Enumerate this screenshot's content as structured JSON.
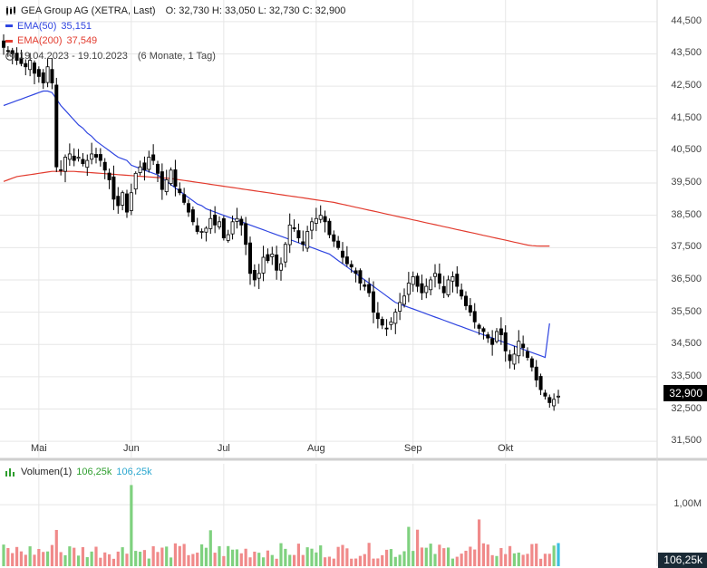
{
  "legend": {
    "instrument": "GEA Group AG (XETRA, Last)",
    "ohlc": "O: 32,730  H: 33,050  L: 32,730  C: 32,900",
    "ema50_label": "EMA(50)",
    "ema50_value": "35,151",
    "ema200_label": "EMA(200)",
    "ema200_value": "37,549",
    "period": "19.04.2023 - 19.10.2023",
    "interval": "(6 Monate, 1 Tag)"
  },
  "volume_legend": {
    "label": "Volumen(1)",
    "value1": "106,25k",
    "value2": "106,25k"
  },
  "last_price": "32,900",
  "last_volume": "106,25k",
  "colors": {
    "ema50": "#2f45e0",
    "ema200": "#e23b2e",
    "candle": "#000000",
    "volume_up": "#7fd17f",
    "volume_down": "#f08a8a",
    "volume_highlight": "#3cbfe0",
    "grid": "#e6e6e6"
  },
  "chart_data": {
    "type": "candlestick",
    "price_ylim": [
      31000,
      45000
    ],
    "y_ticks": [
      {
        "v": 44500,
        "label": "44,500"
      },
      {
        "v": 43500,
        "label": "43,500"
      },
      {
        "v": 42500,
        "label": "42,500"
      },
      {
        "v": 41500,
        "label": "41,500"
      },
      {
        "v": 40500,
        "label": "40,500"
      },
      {
        "v": 39500,
        "label": "39,500"
      },
      {
        "v": 38500,
        "label": "38,500"
      },
      {
        "v": 37500,
        "label": "37,500"
      },
      {
        "v": 36500,
        "label": "36,500"
      },
      {
        "v": 35500,
        "label": "35,500"
      },
      {
        "v": 34500,
        "label": "34,500"
      },
      {
        "v": 33500,
        "label": "33,500"
      },
      {
        "v": 32500,
        "label": "32,500"
      },
      {
        "v": 31500,
        "label": "31,500"
      }
    ],
    "x_ticks": [
      {
        "i": 8,
        "label": "Mai"
      },
      {
        "i": 29,
        "label": "Jun"
      },
      {
        "i": 50,
        "label": "Jul"
      },
      {
        "i": 71,
        "label": "Aug"
      },
      {
        "i": 93,
        "label": "Sep"
      },
      {
        "i": 114,
        "label": "Okt"
      }
    ],
    "volume_tick": {
      "v": 1000,
      "label": "1,00M"
    },
    "volume_ylim": [
      0,
      1400
    ],
    "closes": [
      43.7,
      43.6,
      43.5,
      43.3,
      43.2,
      43.1,
      43.3,
      42.9,
      42.8,
      42.6,
      43.1,
      42.6,
      40.0,
      39.9,
      40.3,
      40.4,
      40.2,
      40.3,
      40.1,
      40.2,
      40.4,
      40.3,
      40.2,
      39.9,
      39.6,
      39.0,
      38.8,
      39.2,
      38.6,
      39.2,
      39.8,
      40.0,
      39.9,
      40.3,
      40.2,
      39.8,
      39.3,
      39.6,
      39.9,
      39.4,
      39.2,
      38.9,
      38.6,
      38.3,
      38.0,
      38.0,
      38.1,
      38.4,
      38.2,
      38.3,
      37.8,
      37.9,
      38.3,
      38.4,
      38.2,
      37.6,
      36.7,
      36.5,
      36.7,
      37.2,
      37.1,
      37.3,
      36.8,
      37.0,
      37.6,
      38.2,
      38.1,
      37.8,
      37.6,
      38.0,
      38.3,
      38.4,
      38.5,
      38.3,
      37.9,
      37.7,
      37.5,
      37.2,
      37.0,
      36.9,
      36.7,
      36.4,
      36.3,
      36.1,
      35.5,
      35.3,
      35.1,
      35.0,
      35.2,
      35.5,
      35.8,
      36.0,
      36.4,
      36.6,
      36.3,
      36.1,
      36.3,
      36.5,
      36.7,
      36.4,
      36.1,
      36.5,
      36.6,
      36.3,
      36.0,
      35.7,
      35.5,
      35.2,
      35.0,
      34.9,
      34.7,
      34.5,
      34.9,
      34.8,
      34.3,
      34.0,
      34.2,
      34.6,
      34.4,
      34.1,
      33.8,
      33.4,
      33.1,
      32.9,
      32.7,
      32.8,
      32.9
    ],
    "ema50_values": [
      41.9,
      41.95,
      42.0,
      42.05,
      42.1,
      42.15,
      42.2,
      42.25,
      42.3,
      42.35,
      42.35,
      42.3,
      42.1,
      41.9,
      41.75,
      41.6,
      41.45,
      41.3,
      41.2,
      41.05,
      40.95,
      40.8,
      40.7,
      40.6,
      40.5,
      40.4,
      40.3,
      40.25,
      40.2,
      40.05,
      40.0,
      39.95,
      39.9,
      39.85,
      39.8,
      39.75,
      39.65,
      39.55,
      39.45,
      39.35,
      39.25,
      39.15,
      39.05,
      38.95,
      38.85,
      38.8,
      38.7,
      38.65,
      38.6,
      38.55,
      38.5,
      38.45,
      38.4,
      38.35,
      38.3,
      38.25,
      38.2,
      38.15,
      38.1,
      38.05,
      38.0,
      37.95,
      37.9,
      37.85,
      37.8,
      37.75,
      37.7,
      37.65,
      37.6,
      37.55,
      37.5,
      37.45,
      37.4,
      37.35,
      37.3,
      37.2,
      37.1,
      37.0,
      36.9,
      36.8,
      36.7,
      36.6,
      36.5,
      36.4,
      36.3,
      36.2,
      36.1,
      36.0,
      35.9,
      35.8,
      35.75,
      35.7,
      35.65,
      35.6,
      35.55,
      35.5,
      35.45,
      35.4,
      35.35,
      35.3,
      35.25,
      35.2,
      35.15,
      35.1,
      35.05,
      35.0,
      34.95,
      34.9,
      34.85,
      34.8,
      34.75,
      34.7,
      34.65,
      34.6,
      34.55,
      34.5,
      34.45,
      34.4,
      34.35,
      34.3,
      34.25,
      34.2,
      34.15,
      34.1,
      35.151
    ],
    "ema200_values": [
      39.55,
      39.6,
      39.65,
      39.7,
      39.72,
      39.74,
      39.76,
      39.78,
      39.8,
      39.82,
      39.84,
      39.86,
      39.86,
      39.86,
      39.86,
      39.86,
      39.86,
      39.85,
      39.84,
      39.83,
      39.82,
      39.81,
      39.8,
      39.79,
      39.78,
      39.77,
      39.76,
      39.75,
      39.74,
      39.73,
      39.72,
      39.71,
      39.7,
      39.69,
      39.68,
      39.67,
      39.66,
      39.65,
      39.64,
      39.62,
      39.6,
      39.58,
      39.56,
      39.54,
      39.52,
      39.5,
      39.48,
      39.46,
      39.44,
      39.42,
      39.4,
      39.38,
      39.36,
      39.34,
      39.32,
      39.3,
      39.28,
      39.26,
      39.24,
      39.22,
      39.2,
      39.18,
      39.16,
      39.14,
      39.12,
      39.1,
      39.08,
      39.06,
      39.04,
      39.02,
      39.0,
      38.98,
      38.96,
      38.94,
      38.92,
      38.9,
      38.87,
      38.84,
      38.81,
      38.78,
      38.75,
      38.72,
      38.69,
      38.66,
      38.63,
      38.6,
      38.57,
      38.54,
      38.51,
      38.48,
      38.45,
      38.42,
      38.39,
      38.36,
      38.33,
      38.3,
      38.27,
      38.24,
      38.21,
      38.18,
      38.15,
      38.12,
      38.09,
      38.06,
      38.03,
      38.0,
      37.97,
      37.94,
      37.91,
      37.88,
      37.85,
      37.82,
      37.79,
      37.76,
      37.73,
      37.7,
      37.67,
      37.64,
      37.61,
      37.58,
      37.56,
      37.55,
      37.549,
      37.549,
      37.549
    ]
  }
}
